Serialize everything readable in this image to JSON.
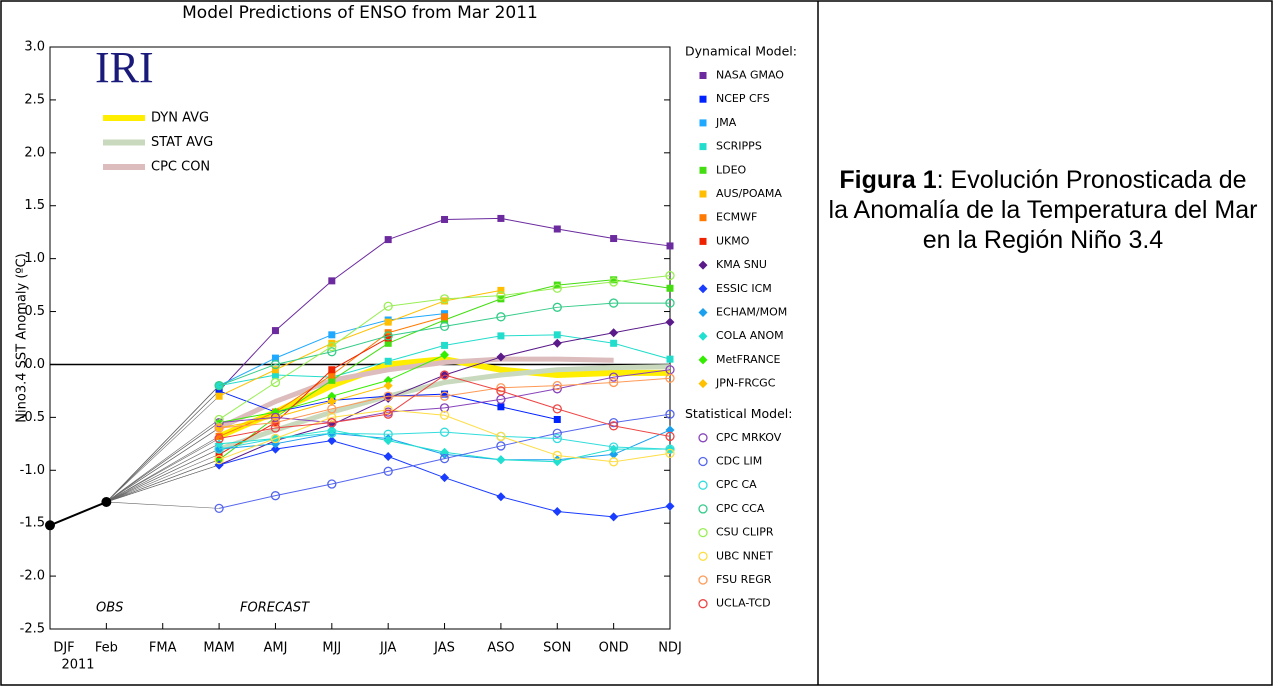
{
  "chart_data": {
    "type": "line",
    "title": "Model Predictions of ENSO from Mar 2011",
    "y_label": "Nino3.4 SST Anomaly (ºC)",
    "logo": "IRI",
    "annotations": [
      "OBS",
      "FORECAST"
    ],
    "year_label": "2011",
    "categories": [
      "DJF",
      "Feb",
      "FMA",
      "MAM",
      "AMJ",
      "MJJ",
      "JJA",
      "JAS",
      "ASO",
      "SON",
      "OND",
      "NDJ"
    ],
    "ylim": [
      -2.5,
      3
    ],
    "yticks": [
      {
        "value": 3,
        "label": "3.0"
      },
      2.5,
      {
        "value": 2,
        "label": "2.0"
      },
      1.5,
      {
        "value": 1,
        "label": "1.0"
      },
      0.5,
      {
        "value": 0,
        "label": "0.0"
      },
      -0.5,
      {
        "value": -1,
        "label": "-1.0"
      },
      -1.5,
      {
        "value": -2,
        "label": "-2.0"
      },
      -2.5
    ],
    "zero_line": true,
    "observed": {
      "color": "#000000",
      "values": [
        -1.52,
        -1.3,
        null,
        null,
        null,
        null,
        null,
        null,
        null,
        null,
        null,
        null
      ]
    },
    "averages": [
      {
        "name": "DYN AVG",
        "color": "#ffee00",
        "values": [
          null,
          null,
          null,
          -0.68,
          -0.45,
          -0.2,
          0.0,
          0.05,
          -0.05,
          -0.1,
          -0.08,
          -0.08
        ]
      },
      {
        "name": "STAT AVG",
        "color": "#c9d9bd",
        "values": [
          null,
          null,
          null,
          -0.8,
          -0.62,
          -0.45,
          -0.3,
          -0.17,
          -0.1,
          -0.05,
          -0.03,
          -0.02
        ]
      },
      {
        "name": "CPC CON",
        "color": "#dcbcbc",
        "values": [
          null,
          null,
          null,
          -0.6,
          -0.35,
          -0.15,
          -0.05,
          0.02,
          0.05,
          0.05,
          0.04,
          null
        ]
      }
    ],
    "dynamical": {
      "title": "Dynamical Model:",
      "series": [
        {
          "name": "NASA GMAO",
          "color": "#6b2a9e",
          "marker": "square",
          "values": [
            null,
            null,
            null,
            -0.25,
            0.32,
            0.79,
            1.18,
            1.37,
            1.38,
            1.28,
            1.19,
            1.12
          ]
        },
        {
          "name": "NCEP CFS",
          "color": "#0022ff",
          "marker": "square",
          "values": [
            null,
            null,
            null,
            -0.25,
            -0.45,
            -0.34,
            -0.3,
            -0.28,
            -0.4,
            -0.52,
            null,
            null
          ]
        },
        {
          "name": "JMA",
          "color": "#1ea8ff",
          "marker": "square",
          "values": [
            null,
            null,
            null,
            -0.2,
            0.06,
            0.28,
            0.42,
            0.48,
            null,
            null,
            null,
            null
          ]
        },
        {
          "name": "SCRIPPS",
          "color": "#22ddcc",
          "marker": "square",
          "values": [
            null,
            null,
            null,
            -0.2,
            -0.1,
            -0.12,
            0.03,
            0.18,
            0.27,
            0.28,
            0.2,
            0.05
          ]
        },
        {
          "name": "LDEO",
          "color": "#44dd11",
          "marker": "square",
          "values": [
            null,
            null,
            null,
            -0.9,
            -0.5,
            -0.15,
            0.2,
            0.42,
            0.62,
            0.75,
            0.8,
            0.72
          ]
        },
        {
          "name": "AUS/POAMA",
          "color": "#ffbf00",
          "marker": "square",
          "values": [
            null,
            null,
            null,
            -0.3,
            -0.05,
            0.2,
            0.4,
            0.6,
            0.7,
            null,
            null,
            null
          ]
        },
        {
          "name": "ECMWF",
          "color": "#ff7a00",
          "marker": "square",
          "values": [
            null,
            null,
            null,
            -0.68,
            -0.45,
            -0.1,
            0.3,
            0.45,
            null,
            null,
            null,
            null
          ]
        },
        {
          "name": "UKMO",
          "color": "#ee2200",
          "marker": "square",
          "values": [
            null,
            null,
            null,
            -0.85,
            -0.55,
            -0.05,
            0.25,
            null,
            null,
            null,
            null,
            null
          ]
        },
        {
          "name": "KMA SNU",
          "color": "#5a1a8a",
          "marker": "diamond",
          "values": [
            null,
            null,
            null,
            -0.95,
            -0.72,
            -0.57,
            -0.32,
            -0.1,
            0.07,
            0.2,
            0.3,
            0.4
          ]
        },
        {
          "name": "ESSIC ICM",
          "color": "#1a3cff",
          "marker": "diamond",
          "values": [
            null,
            null,
            null,
            -0.95,
            -0.8,
            -0.72,
            -0.87,
            -1.07,
            -1.25,
            -1.39,
            -1.44,
            -1.34
          ]
        },
        {
          "name": "ECHAM/MOM",
          "color": "#1aa0ee",
          "marker": "diamond",
          "values": [
            null,
            null,
            null,
            -0.8,
            -0.75,
            -0.65,
            -0.7,
            -0.85,
            -0.9,
            -0.9,
            -0.85,
            -0.62
          ]
        },
        {
          "name": "COLA ANOM",
          "color": "#22e0d0",
          "marker": "diamond",
          "values": [
            null,
            null,
            null,
            -0.75,
            -0.7,
            -0.62,
            -0.72,
            -0.83,
            -0.9,
            -0.92,
            -0.8,
            -0.8
          ]
        },
        {
          "name": "MetFRANCE",
          "color": "#33ee00",
          "marker": "diamond",
          "values": [
            null,
            null,
            null,
            -0.55,
            -0.45,
            -0.3,
            -0.15,
            0.09,
            null,
            null,
            null,
            null
          ]
        },
        {
          "name": "JPN-FRCGC",
          "color": "#ffc000",
          "marker": "diamond",
          "values": [
            null,
            null,
            null,
            -0.6,
            -0.5,
            -0.35,
            -0.2,
            null,
            null,
            null,
            null,
            null
          ]
        }
      ]
    },
    "statistical": {
      "title": "Statistical Model:",
      "series": [
        {
          "name": "CPC MRKOV",
          "color": "#8844bb",
          "marker": "circle",
          "values": [
            null,
            null,
            null,
            -0.55,
            -0.5,
            -0.55,
            -0.45,
            -0.41,
            -0.33,
            -0.23,
            -0.12,
            -0.05
          ]
        },
        {
          "name": "CDC LIM",
          "color": "#5566ee",
          "marker": "circle",
          "values": [
            null,
            null,
            null,
            -1.36,
            -1.24,
            -1.13,
            -1.01,
            -0.89,
            -0.77,
            -0.65,
            -0.55,
            -0.47
          ]
        },
        {
          "name": "CPC CA",
          "color": "#33dddd",
          "marker": "circle",
          "values": [
            null,
            null,
            null,
            -0.8,
            -0.7,
            -0.65,
            -0.66,
            -0.64,
            -0.68,
            -0.7,
            -0.78,
            -0.8
          ]
        },
        {
          "name": "CPC CCA",
          "color": "#33cc88",
          "marker": "circle",
          "values": [
            null,
            null,
            null,
            -0.2,
            0.0,
            0.12,
            0.27,
            0.36,
            0.45,
            0.54,
            0.58,
            0.58
          ]
        },
        {
          "name": "CSU CLIPR",
          "color": "#99ee55",
          "marker": "circle",
          "values": [
            null,
            null,
            null,
            -0.52,
            -0.17,
            0.17,
            0.55,
            0.62,
            0.65,
            0.72,
            0.78,
            0.84
          ]
        },
        {
          "name": "UBC NNET",
          "color": "#ffdd44",
          "marker": "circle",
          "values": [
            null,
            null,
            null,
            -0.9,
            -0.7,
            -0.5,
            -0.43,
            -0.48,
            -0.68,
            -0.86,
            -0.92,
            -0.84
          ]
        },
        {
          "name": "FSU REGR",
          "color": "#ff9955",
          "marker": "circle",
          "values": [
            null,
            null,
            null,
            -0.6,
            -0.55,
            -0.42,
            -0.3,
            -0.3,
            -0.22,
            -0.2,
            -0.17,
            -0.13
          ]
        },
        {
          "name": "UCLA-TCD",
          "color": "#ee4444",
          "marker": "circle",
          "values": [
            null,
            null,
            null,
            -0.7,
            -0.6,
            -0.55,
            -0.47,
            -0.1,
            -0.25,
            -0.42,
            -0.58,
            -0.68
          ]
        }
      ]
    }
  },
  "caption": {
    "label": "Figura 1",
    "text": ": Evolución Pronosticada de la Anomalía de la Temperatura del Mar en la Región Niño 3.4"
  }
}
